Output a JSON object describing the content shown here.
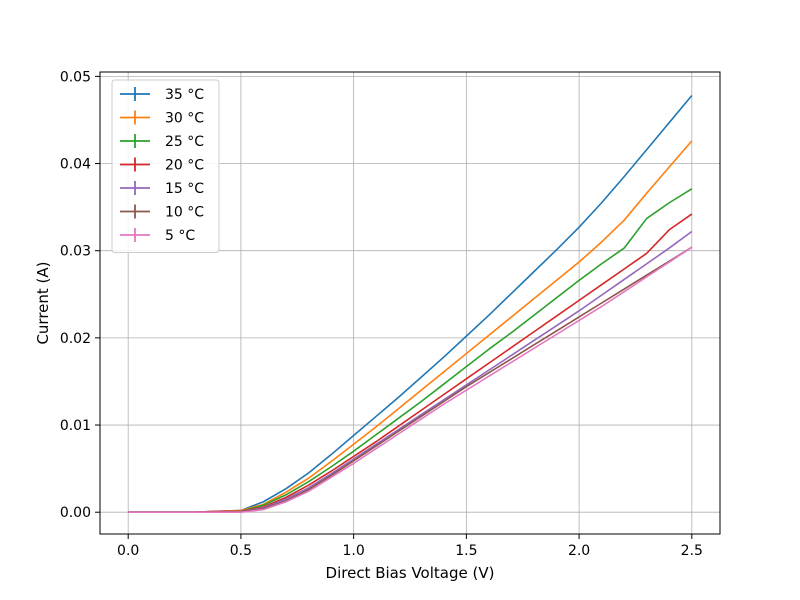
{
  "chart_data": {
    "type": "line",
    "title": "",
    "xlabel": "Direct Bias Voltage (V)",
    "ylabel": "Current (A)",
    "xlim": [
      -0.125,
      2.625
    ],
    "ylim": [
      -0.0025,
      0.0505
    ],
    "xticks": [
      0.0,
      0.5,
      1.0,
      1.5,
      2.0,
      2.5
    ],
    "xtick_labels": [
      "0.0",
      "0.5",
      "1.0",
      "1.5",
      "2.0",
      "2.5"
    ],
    "yticks": [
      0.0,
      0.01,
      0.02,
      0.03,
      0.04,
      0.05
    ],
    "ytick_labels": [
      "0.00",
      "0.01",
      "0.02",
      "0.03",
      "0.04",
      "0.05"
    ],
    "grid": true,
    "legend_position": "top-left",
    "x": [
      0.0,
      0.1,
      0.2,
      0.3,
      0.4,
      0.5,
      0.6,
      0.7,
      0.8,
      0.9,
      1.0,
      1.1,
      1.2,
      1.3,
      1.4,
      1.5,
      1.6,
      1.7,
      1.8,
      1.9,
      2.0,
      2.1,
      2.2,
      2.3,
      2.4,
      2.5
    ],
    "series": [
      {
        "name": "35 °C",
        "color": "#1f77b4",
        "values": [
          0,
          0,
          0,
          0,
          0.0001,
          0.0002,
          0.0012,
          0.0027,
          0.0045,
          0.0066,
          0.0088,
          0.011,
          0.0132,
          0.0155,
          0.0178,
          0.0202,
          0.0226,
          0.0251,
          0.0276,
          0.0301,
          0.0327,
          0.0355,
          0.0385,
          0.0416,
          0.0447,
          0.0478
        ]
      },
      {
        "name": "30 °C",
        "color": "#ff7f0e",
        "values": [
          0,
          0,
          0,
          0,
          0.0001,
          0.0002,
          0.0009,
          0.0023,
          0.0039,
          0.0058,
          0.0078,
          0.0098,
          0.0119,
          0.014,
          0.0161,
          0.0182,
          0.0203,
          0.0224,
          0.0245,
          0.0266,
          0.0287,
          0.031,
          0.0335,
          0.0366,
          0.0396,
          0.0426
        ]
      },
      {
        "name": "25 °C",
        "color": "#2ca02c",
        "values": [
          0,
          0,
          0,
          0,
          0.0001,
          0.0001,
          0.0008,
          0.002,
          0.0035,
          0.0052,
          0.007,
          0.0089,
          0.0108,
          0.0127,
          0.0147,
          0.0167,
          0.0187,
          0.0206,
          0.0226,
          0.0246,
          0.0266,
          0.0285,
          0.0303,
          0.0337,
          0.0355,
          0.0371
        ]
      },
      {
        "name": "20 °C",
        "color": "#d62728",
        "values": [
          0,
          0,
          0,
          0,
          0.0001,
          0.0001,
          0.0006,
          0.0017,
          0.0031,
          0.0047,
          0.0064,
          0.0081,
          0.0099,
          0.0117,
          0.0135,
          0.0153,
          0.0171,
          0.0189,
          0.0207,
          0.0225,
          0.0243,
          0.0261,
          0.0279,
          0.0297,
          0.0324,
          0.0342
        ]
      },
      {
        "name": "15 °C",
        "color": "#9467bd",
        "values": [
          0,
          0,
          0,
          0,
          0,
          0.0001,
          0.0005,
          0.0015,
          0.0028,
          0.0044,
          0.0061,
          0.0078,
          0.0095,
          0.0112,
          0.0129,
          0.0146,
          0.0163,
          0.018,
          0.0197,
          0.0214,
          0.0231,
          0.0249,
          0.0267,
          0.0285,
          0.0303,
          0.0322
        ]
      },
      {
        "name": "10 °C",
        "color": "#8c564b",
        "values": [
          0,
          0,
          0,
          0,
          0,
          0.0001,
          0.0004,
          0.0013,
          0.0026,
          0.0042,
          0.0059,
          0.0076,
          0.0093,
          0.011,
          0.0127,
          0.0144,
          0.016,
          0.0176,
          0.0192,
          0.0208,
          0.0224,
          0.024,
          0.0256,
          0.0272,
          0.0288,
          0.0304
        ]
      },
      {
        "name": "5 °C",
        "color": "#e377c2",
        "values": [
          0,
          0,
          0,
          0,
          0,
          0,
          0.0003,
          0.0012,
          0.0024,
          0.004,
          0.0056,
          0.0073,
          0.009,
          0.0107,
          0.0124,
          0.014,
          0.0156,
          0.0172,
          0.0188,
          0.0204,
          0.022,
          0.0236,
          0.0253,
          0.027,
          0.0287,
          0.0304
        ]
      }
    ]
  }
}
